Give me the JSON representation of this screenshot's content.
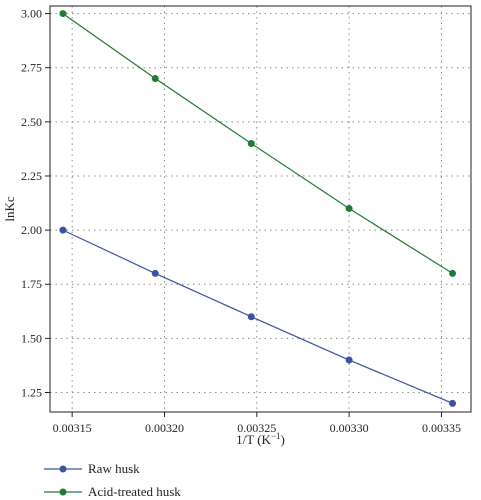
{
  "chart_data": {
    "type": "line",
    "xlabel": "1/T (K",
    "xlabel_sup": "−1",
    "xlabel_close": ")",
    "ylabel": "lnKc",
    "xlim": [
      0.003138,
      0.003366
    ],
    "ylim": [
      1.16,
      3.035
    ],
    "xticks": [
      0.00315,
      0.0032,
      0.00325,
      0.0033,
      0.00335
    ],
    "xtick_labels": [
      "0.00315",
      "0.00320",
      "0.00325",
      "0.00330",
      "0.00335"
    ],
    "yticks": [
      1.25,
      1.5,
      1.75,
      2.0,
      2.25,
      2.5,
      2.75,
      3.0
    ],
    "ytick_labels": [
      "1.25",
      "1.50",
      "1.75",
      "2.00",
      "2.25",
      "2.50",
      "2.75",
      "3.00"
    ],
    "grid": true,
    "legend_position": "bottom-left",
    "x": [
      0.003145,
      0.003195,
      0.003247,
      0.0033,
      0.003356
    ],
    "series": [
      {
        "name": "Raw husk",
        "color": "#3a52a3",
        "values": [
          2.0,
          1.8,
          1.6,
          1.4,
          1.2
        ]
      },
      {
        "name": "Acid-treated husk",
        "color": "#1e7a35",
        "values": [
          3.0,
          2.7,
          2.4,
          2.1,
          1.8
        ]
      }
    ]
  }
}
